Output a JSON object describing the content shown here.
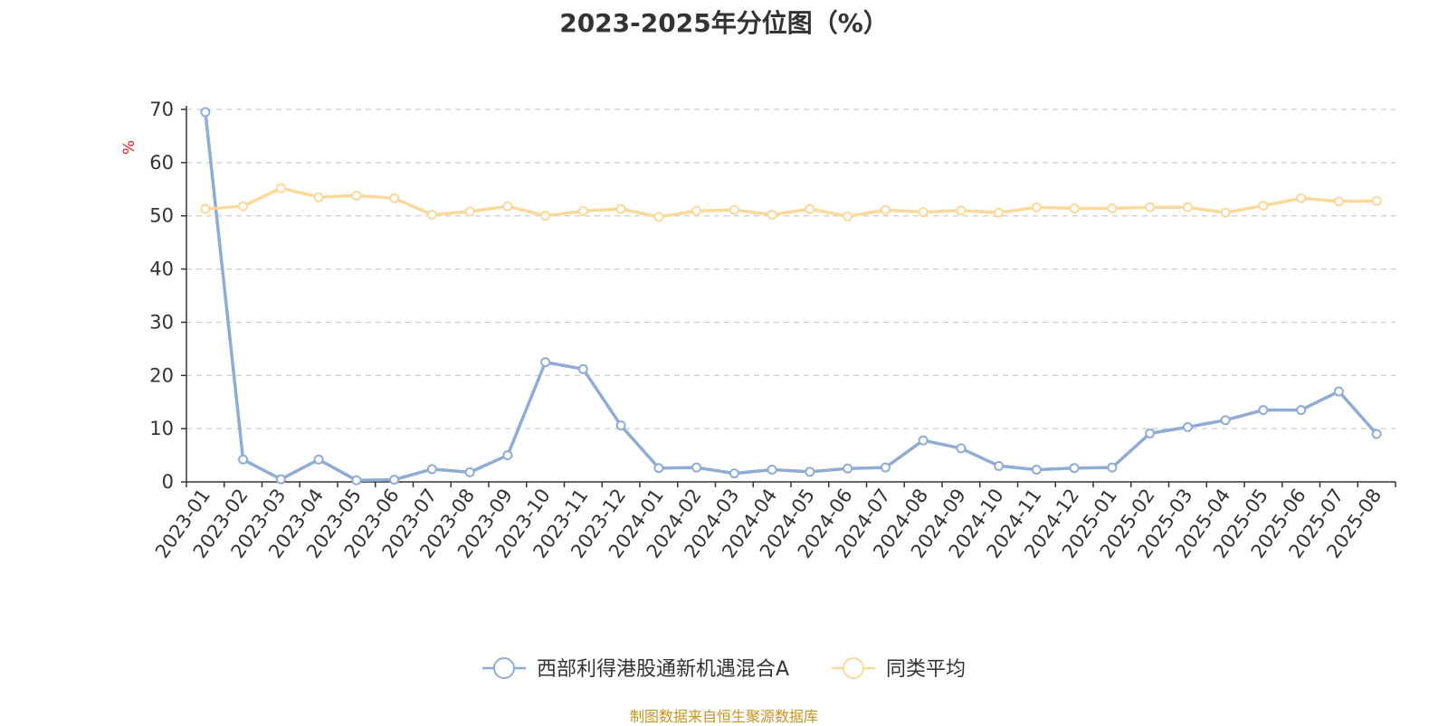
{
  "chart_data": {
    "type": "line",
    "title": "2023-2025年分位图（%）",
    "ylabel": "%",
    "ylim": [
      0,
      70
    ],
    "yticks": [
      0,
      10,
      20,
      30,
      40,
      50,
      60,
      70
    ],
    "grid": true,
    "legend_position": "bottom",
    "categories": [
      "2023-01",
      "2023-02",
      "2023-03",
      "2023-04",
      "2023-05",
      "2023-06",
      "2023-07",
      "2023-08",
      "2023-09",
      "2023-10",
      "2023-11",
      "2023-12",
      "2024-01",
      "2024-02",
      "2024-03",
      "2024-04",
      "2024-05",
      "2024-06",
      "2024-07",
      "2024-08",
      "2024-09",
      "2024-10",
      "2024-11",
      "2024-12",
      "2025-01",
      "2025-02",
      "2025-03",
      "2025-04",
      "2025-05",
      "2025-06",
      "2025-07",
      "2025-08"
    ],
    "series": [
      {
        "name": "西部利得港股通新机遇混合A",
        "color": "#8eacd6",
        "values": [
          69.5,
          4.2,
          0.5,
          4.2,
          0.3,
          0.4,
          2.4,
          1.8,
          5.0,
          22.5,
          21.2,
          10.6,
          2.6,
          2.7,
          1.6,
          2.3,
          1.9,
          2.5,
          2.7,
          7.8,
          6.3,
          3.0,
          2.3,
          2.6,
          2.7,
          9.1,
          10.3,
          11.6,
          13.5,
          13.5,
          17.0,
          9.0
        ]
      },
      {
        "name": "同类平均",
        "color": "#fbd99a",
        "values": [
          51.3,
          51.8,
          55.2,
          53.5,
          53.8,
          53.3,
          50.2,
          50.8,
          51.8,
          50.0,
          50.9,
          51.3,
          49.8,
          50.9,
          51.1,
          50.2,
          51.3,
          49.9,
          51.1,
          50.7,
          51.0,
          50.6,
          51.6,
          51.4,
          51.4,
          51.6,
          51.6,
          50.6,
          51.9,
          53.3,
          52.7,
          52.8
        ]
      }
    ]
  },
  "source_note": "制图数据来自恒生聚源数据库"
}
